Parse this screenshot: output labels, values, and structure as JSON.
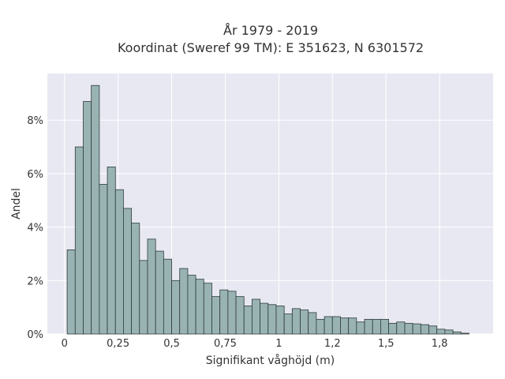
{
  "chart_data": {
    "type": "bar",
    "title_lines": [
      "År 1979 - 2019",
      "Koordinat (Sweref 99 TM): E 351623, N 6301572"
    ],
    "xlabel": "Signifikant våghöjd (m)",
    "ylabel": "Andel",
    "x_ticks": [
      {
        "value": 0,
        "label": "0"
      },
      {
        "value": 0.25,
        "label": "0,25"
      },
      {
        "value": 0.5,
        "label": "0,5"
      },
      {
        "value": 0.75,
        "label": "0,75"
      },
      {
        "value": 1,
        "label": "1"
      },
      {
        "value": 1.25,
        "label": "1,2"
      },
      {
        "value": 1.5,
        "label": "1,5"
      },
      {
        "value": 1.75,
        "label": "1,8"
      }
    ],
    "y_ticks": [
      {
        "value": 0,
        "label": "0%"
      },
      {
        "value": 2,
        "label": "2%"
      },
      {
        "value": 4,
        "label": "4%"
      },
      {
        "value": 6,
        "label": "6%"
      },
      {
        "value": 8,
        "label": "8%"
      }
    ],
    "xlim": [
      -0.08,
      2.0
    ],
    "ylim": [
      0,
      9.75
    ],
    "bin_start": 0.0125,
    "bin_width": 0.0375,
    "values": [
      3.15,
      7.0,
      8.7,
      9.3,
      5.6,
      6.25,
      5.4,
      4.7,
      4.15,
      2.75,
      3.55,
      3.1,
      2.8,
      2.0,
      2.45,
      2.2,
      2.05,
      1.9,
      1.4,
      1.65,
      1.6,
      1.4,
      1.05,
      1.3,
      1.15,
      1.1,
      1.05,
      0.75,
      0.95,
      0.9,
      0.8,
      0.55,
      0.65,
      0.65,
      0.6,
      0.6,
      0.45,
      0.55,
      0.55,
      0.55,
      0.4,
      0.45,
      0.4,
      0.38,
      0.35,
      0.3,
      0.18,
      0.15,
      0.08,
      0.03
    ],
    "grid": true,
    "colors": {
      "bar_fill": "#99b3b3",
      "bar_stroke": "#2f3b3b",
      "plot_bg": "#e8e8f2",
      "grid": "#ffffff"
    }
  }
}
